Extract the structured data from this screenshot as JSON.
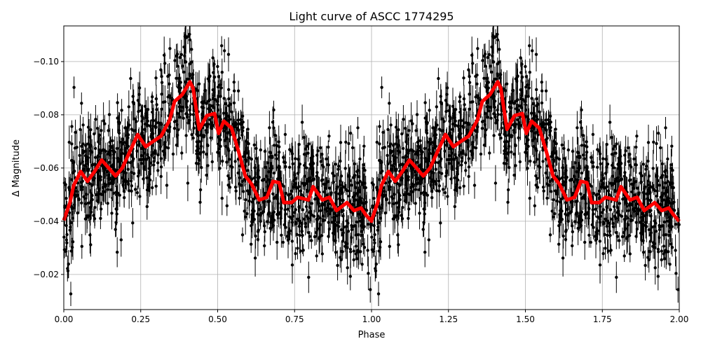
{
  "chart_data": {
    "type": "scatter",
    "title": "Light curve of ASCC 1774295",
    "xlabel": "Phase",
    "ylabel": "Δ Magnitude",
    "xlim": [
      0,
      2
    ],
    "ylim": [
      -0.1134,
      -0.0068
    ],
    "y_inverted": true,
    "grid": true,
    "xticks": [
      "0.00",
      "0.25",
      "0.50",
      "0.75",
      "1.00",
      "1.25",
      "1.50",
      "1.75",
      "2.00"
    ],
    "xtick_values": [
      0,
      0.25,
      0.5,
      0.75,
      1,
      1.25,
      1.5,
      1.75,
      2
    ],
    "yticks": [
      "−0.10",
      "−0.08",
      "−0.06",
      "−0.04",
      "−0.02"
    ],
    "ytick_values": [
      -0.1,
      -0.08,
      -0.06,
      -0.04,
      -0.02
    ],
    "scatter_color": "#000000",
    "model_color": "#ff0000",
    "model_curve": {
      "phase": [
        0,
        0.02,
        0.032,
        0.055,
        0.077,
        0.1,
        0.123,
        0.146,
        0.168,
        0.19,
        0.214,
        0.24,
        0.266,
        0.29,
        0.316,
        0.344,
        0.36,
        0.385,
        0.41,
        0.42,
        0.44,
        0.465,
        0.49,
        0.503,
        0.52,
        0.545,
        0.567,
        0.59,
        0.61,
        0.635,
        0.66,
        0.68,
        0.7,
        0.715,
        0.74,
        0.76,
        0.795,
        0.81,
        0.84,
        0.863,
        0.886,
        0.92,
        0.943,
        0.966,
        0.98,
        1.0
      ],
      "magnitude": [
        -0.0403,
        -0.047,
        -0.0534,
        -0.0587,
        -0.055,
        -0.0587,
        -0.063,
        -0.06,
        -0.057,
        -0.06,
        -0.066,
        -0.0726,
        -0.068,
        -0.07,
        -0.072,
        -0.078,
        -0.085,
        -0.0876,
        -0.0924,
        -0.09,
        -0.0745,
        -0.0797,
        -0.0805,
        -0.073,
        -0.0776,
        -0.075,
        -0.0666,
        -0.057,
        -0.054,
        -0.048,
        -0.049,
        -0.055,
        -0.0545,
        -0.047,
        -0.047,
        -0.049,
        -0.048,
        -0.053,
        -0.048,
        -0.049,
        -0.044,
        -0.047,
        -0.044,
        -0.045,
        -0.0426,
        -0.04
      ]
    }
  }
}
